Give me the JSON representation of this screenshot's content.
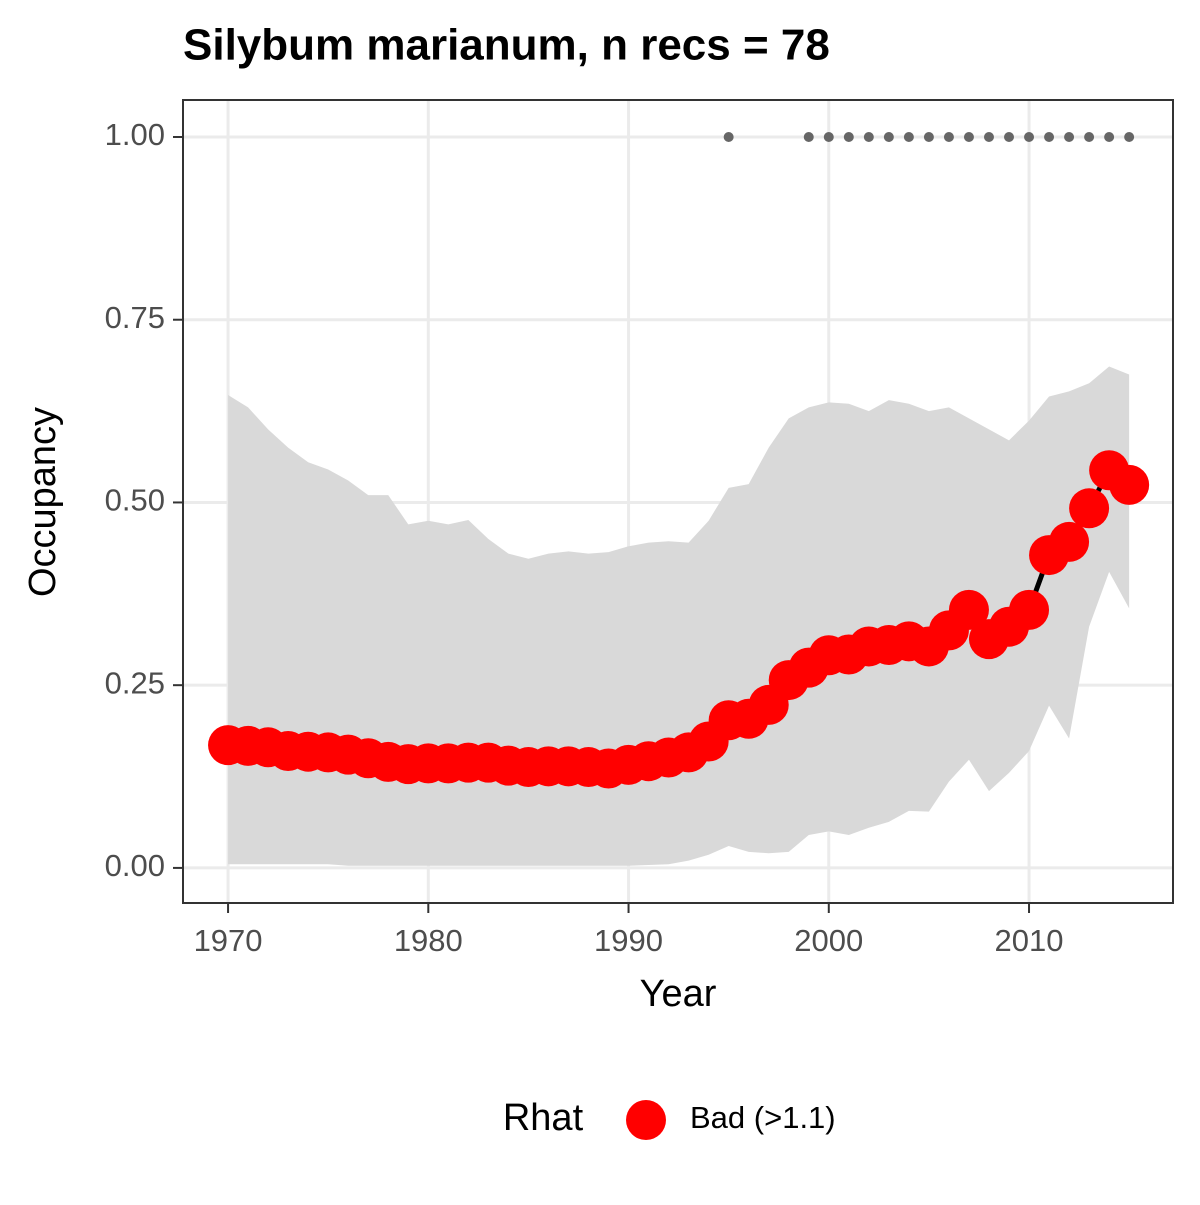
{
  "chart_data": {
    "type": "ribbon-line",
    "title": "Silybum marianum, n recs = 78",
    "x_label": "Year",
    "y_label": "Occupancy",
    "x": [
      1970,
      1971,
      1972,
      1973,
      1974,
      1975,
      1976,
      1977,
      1978,
      1979,
      1980,
      1981,
      1982,
      1983,
      1984,
      1985,
      1986,
      1987,
      1988,
      1989,
      1990,
      1991,
      1992,
      1993,
      1994,
      1995,
      1996,
      1997,
      1998,
      1999,
      2000,
      2001,
      2002,
      2003,
      2004,
      2005,
      2006,
      2007,
      2008,
      2009,
      2010,
      2011,
      2012,
      2013,
      2014,
      2015
    ],
    "series": [
      {
        "name": "Bad (>1.1)",
        "color": "#ff0000",
        "line_color": "#000000",
        "values": [
          0.168,
          0.167,
          0.165,
          0.16,
          0.159,
          0.158,
          0.155,
          0.15,
          0.145,
          0.142,
          0.143,
          0.143,
          0.144,
          0.144,
          0.14,
          0.138,
          0.139,
          0.139,
          0.138,
          0.136,
          0.141,
          0.146,
          0.151,
          0.158,
          0.173,
          0.202,
          0.204,
          0.223,
          0.257,
          0.274,
          0.291,
          0.292,
          0.303,
          0.305,
          0.31,
          0.303,
          0.325,
          0.353,
          0.313,
          0.33,
          0.353,
          0.428,
          0.446,
          0.492,
          0.544,
          0.524
        ]
      }
    ],
    "ribbon": {
      "color": "#d9d9d9",
      "upper": [
        0.647,
        0.63,
        0.6,
        0.575,
        0.555,
        0.545,
        0.53,
        0.51,
        0.51,
        0.47,
        0.475,
        0.47,
        0.476,
        0.45,
        0.43,
        0.423,
        0.43,
        0.433,
        0.43,
        0.432,
        0.44,
        0.445,
        0.447,
        0.445,
        0.475,
        0.52,
        0.525,
        0.575,
        0.615,
        0.63,
        0.637,
        0.635,
        0.625,
        0.64,
        0.635,
        0.625,
        0.63,
        0.615,
        0.6,
        0.585,
        0.612,
        0.645,
        0.652,
        0.663,
        0.686,
        0.675
      ],
      "lower": [
        0.005,
        0.005,
        0.005,
        0.005,
        0.005,
        0.005,
        0.003,
        0.003,
        0.003,
        0.003,
        0.003,
        0.003,
        0.003,
        0.003,
        0.003,
        0.003,
        0.003,
        0.003,
        0.003,
        0.003,
        0.003,
        0.004,
        0.005,
        0.01,
        0.018,
        0.03,
        0.022,
        0.02,
        0.022,
        0.045,
        0.05,
        0.045,
        0.055,
        0.063,
        0.078,
        0.077,
        0.118,
        0.148,
        0.105,
        0.13,
        0.16,
        0.222,
        0.177,
        0.33,
        0.405,
        0.355
      ]
    },
    "records": {
      "color": "#666666",
      "x": [
        1995,
        1999,
        2000,
        2001,
        2002,
        2003,
        2004,
        2005,
        2006,
        2007,
        2008,
        2009,
        2010,
        2011,
        2012,
        2013,
        2014,
        2015
      ],
      "values": [
        1,
        1,
        1,
        1,
        1,
        1,
        1,
        1,
        1,
        1,
        1,
        1,
        1,
        1,
        1,
        1,
        1,
        1
      ]
    },
    "legend_title": "Rhat",
    "legend_position": "bottom",
    "xlim": [
      1967.75,
      2017.19
    ],
    "ylim": [
      -0.048,
      1.0506
    ],
    "xticks": [
      1970,
      1980,
      1990,
      2000,
      2010
    ],
    "yticks": [
      {
        "value": 0,
        "label": "0.00"
      },
      {
        "value": 0.25,
        "label": "0.25"
      },
      {
        "value": 0.5,
        "label": "0.50"
      },
      {
        "value": 0.75,
        "label": "0.75"
      },
      {
        "value": 1,
        "label": "1.00"
      }
    ],
    "grid": true
  }
}
